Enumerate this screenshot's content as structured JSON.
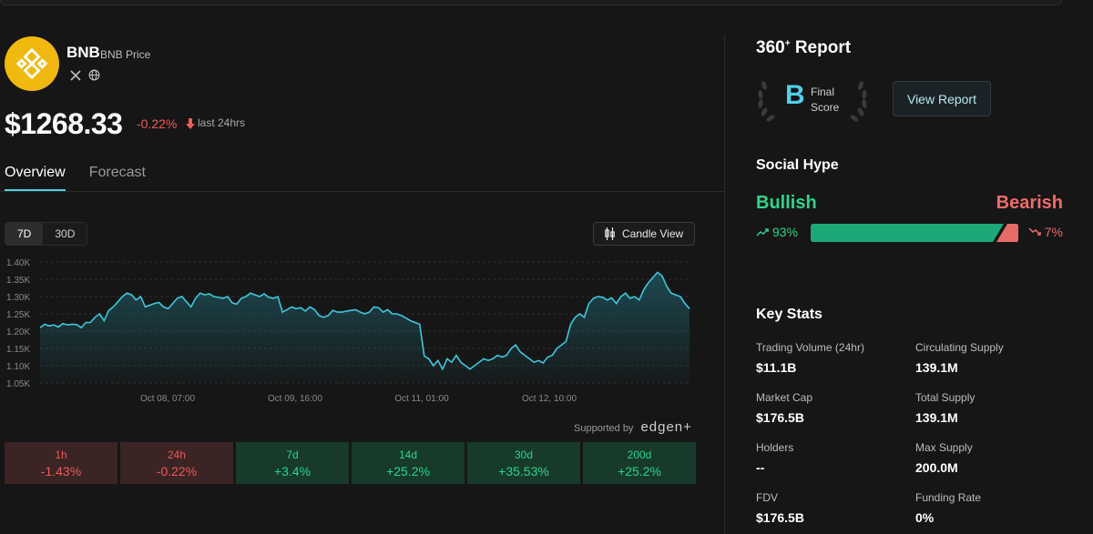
{
  "coin": {
    "symbol": "BNB",
    "subtitle": "BNB Price",
    "price": "$1268.33",
    "change": "-0.22%",
    "change_note": "last 24hrs",
    "brand_color": "#f0b90b",
    "social_icons": [
      "x-icon",
      "globe-icon"
    ]
  },
  "tabs": [
    {
      "label": "Overview",
      "active": true
    },
    {
      "label": "Forecast",
      "active": false
    }
  ],
  "chart_controls": {
    "ranges": [
      {
        "label": "7D",
        "active": true
      },
      {
        "label": "30D",
        "active": false
      }
    ],
    "candle_view_label": "Candle View"
  },
  "chart_data": {
    "type": "area",
    "y_ticks": [
      "1.40K",
      "1.35K",
      "1.30K",
      "1.25K",
      "1.20K",
      "1.15K",
      "1.10K",
      "1.05K"
    ],
    "ylim": [
      1050,
      1400
    ],
    "x_ticks": [
      "Oct 08, 07:00",
      "Oct 09, 16:00",
      "Oct 11, 01:00",
      "Oct 12, 10:00"
    ],
    "grid": true,
    "line_color": "#3ec8dd",
    "series": [
      {
        "values": [
          1210,
          1220,
          1215,
          1218,
          1212,
          1222,
          1218,
          1220,
          1219,
          1210,
          1225,
          1225,
          1240,
          1250,
          1230,
          1260,
          1270,
          1285,
          1300,
          1310,
          1305,
          1290,
          1300,
          1270,
          1275,
          1280,
          1283,
          1270,
          1265,
          1280,
          1295,
          1300,
          1285,
          1270,
          1295,
          1310,
          1305,
          1308,
          1300,
          1298,
          1295,
          1300,
          1282,
          1278,
          1295,
          1300,
          1310,
          1305,
          1300,
          1308,
          1298,
          1295,
          1300,
          1255,
          1262,
          1270,
          1265,
          1268,
          1258,
          1270,
          1262,
          1245,
          1240,
          1245,
          1260,
          1255,
          1255,
          1258,
          1260,
          1262,
          1255,
          1250,
          1255,
          1270,
          1268,
          1255,
          1262,
          1250,
          1250,
          1245,
          1238,
          1230,
          1225,
          1220,
          1128,
          1120,
          1100,
          1115,
          1090,
          1120,
          1110,
          1130,
          1110,
          1100,
          1090,
          1100,
          1110,
          1120,
          1115,
          1120,
          1130,
          1125,
          1130,
          1150,
          1160,
          1140,
          1130,
          1120,
          1110,
          1115,
          1108,
          1125,
          1130,
          1150,
          1160,
          1170,
          1220,
          1240,
          1250,
          1240,
          1280,
          1295,
          1300,
          1298,
          1290,
          1296,
          1280,
          1300,
          1310,
          1295,
          1300,
          1290,
          1320,
          1340,
          1355,
          1370,
          1360,
          1330,
          1310,
          1305,
          1300,
          1280,
          1265
        ]
      }
    ]
  },
  "supported_by": {
    "label": "Supported by",
    "brand": "edgen+"
  },
  "performance": [
    {
      "label": "1h",
      "value": "-1.43%",
      "trend": "neg"
    },
    {
      "label": "24h",
      "value": "-0.22%",
      "trend": "neg"
    },
    {
      "label": "7d",
      "value": "+3.4%",
      "trend": "pos"
    },
    {
      "label": "14d",
      "value": "+25.2%",
      "trend": "pos"
    },
    {
      "label": "30d",
      "value": "+35.53%",
      "trend": "pos"
    },
    {
      "label": "200d",
      "value": "+25.2%",
      "trend": "pos"
    }
  ],
  "report": {
    "title": "360",
    "title_sup": "+",
    "title_rest": "Report",
    "score_letter": "B",
    "score_label_1": "Final",
    "score_label_2": "Score",
    "view_button": "View Report"
  },
  "social_hype": {
    "title": "Social Hype",
    "bullish_label": "Bullish",
    "bearish_label": "Bearish",
    "bullish_pct": "93%",
    "bearish_pct": "7%",
    "bullish_fraction": 0.93,
    "bull_color": "#1fa877",
    "bear_color": "#e56b6b"
  },
  "key_stats": {
    "title": "Key Stats",
    "items": [
      {
        "label": "Trading Volume (24hr)",
        "value": "$11.1B"
      },
      {
        "label": "Circulating Supply",
        "value": "139.1M"
      },
      {
        "label": "Market Cap",
        "value": "$176.5B"
      },
      {
        "label": "Total Supply",
        "value": "139.1M"
      },
      {
        "label": "Holders",
        "value": "--"
      },
      {
        "label": "Max Supply",
        "value": "200.0M"
      },
      {
        "label": "FDV",
        "value": "$176.5B"
      },
      {
        "label": "Funding Rate",
        "value": "0%"
      }
    ]
  }
}
